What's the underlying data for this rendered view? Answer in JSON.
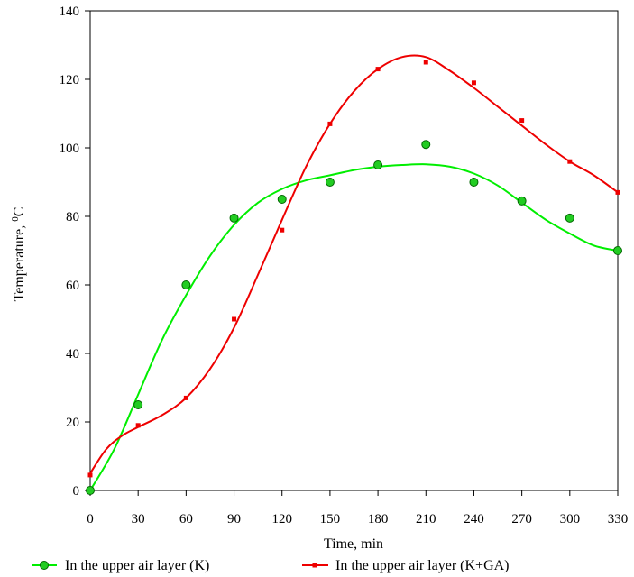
{
  "chart_data": {
    "type": "scatter",
    "xlabel": "Time, min",
    "ylabel": "Temperature, ",
    "ylabel_sup": "0",
    "ylabel_unit": "C",
    "xlim": [
      0,
      330
    ],
    "ylim": [
      0,
      140
    ],
    "x_ticks": [
      0,
      30,
      60,
      90,
      120,
      150,
      180,
      210,
      240,
      270,
      300,
      330
    ],
    "y_ticks": [
      0,
      20,
      40,
      60,
      80,
      100,
      120,
      140
    ],
    "grid": false,
    "legend_position": "bottom",
    "series": [
      {
        "name": "In the upper air layer (K)",
        "color": "#00ee00",
        "marker": "circle",
        "marker_color": "#22cc22",
        "points": [
          [
            0,
            0
          ],
          [
            30,
            25
          ],
          [
            60,
            60
          ],
          [
            90,
            79.5
          ],
          [
            120,
            85
          ],
          [
            150,
            90
          ],
          [
            180,
            95
          ],
          [
            210,
            101
          ],
          [
            240,
            90
          ],
          [
            270,
            84.5
          ],
          [
            300,
            79.5
          ],
          [
            330,
            70
          ]
        ],
        "trend": [
          [
            0,
            0
          ],
          [
            15,
            12
          ],
          [
            30,
            28
          ],
          [
            45,
            44
          ],
          [
            60,
            57
          ],
          [
            75,
            68.5
          ],
          [
            90,
            77.5
          ],
          [
            105,
            84
          ],
          [
            120,
            88
          ],
          [
            135,
            90.5
          ],
          [
            150,
            92
          ],
          [
            165,
            93.5
          ],
          [
            180,
            94.5
          ],
          [
            195,
            95
          ],
          [
            210,
            95.2
          ],
          [
            225,
            94.5
          ],
          [
            240,
            92.5
          ],
          [
            255,
            89
          ],
          [
            270,
            84
          ],
          [
            285,
            79
          ],
          [
            300,
            75
          ],
          [
            315,
            71.5
          ],
          [
            330,
            70
          ]
        ]
      },
      {
        "name": "In the upper air layer (K+GA)",
        "color": "#ee0000",
        "marker": "square",
        "marker_color": "#ee0000",
        "points": [
          [
            0,
            4.5
          ],
          [
            30,
            19
          ],
          [
            60,
            27
          ],
          [
            90,
            50
          ],
          [
            120,
            76
          ],
          [
            150,
            107
          ],
          [
            180,
            123
          ],
          [
            210,
            125
          ],
          [
            240,
            119
          ],
          [
            270,
            108
          ],
          [
            300,
            96
          ],
          [
            330,
            87
          ]
        ],
        "trend": [
          [
            0,
            5
          ],
          [
            10,
            12
          ],
          [
            20,
            16
          ],
          [
            30,
            18.5
          ],
          [
            45,
            22
          ],
          [
            60,
            27
          ],
          [
            75,
            35.5
          ],
          [
            90,
            47.5
          ],
          [
            105,
            63
          ],
          [
            120,
            79
          ],
          [
            135,
            94.5
          ],
          [
            150,
            107
          ],
          [
            165,
            116.5
          ],
          [
            180,
            123
          ],
          [
            195,
            126.5
          ],
          [
            210,
            126.5
          ],
          [
            225,
            122.5
          ],
          [
            240,
            117.5
          ],
          [
            255,
            112
          ],
          [
            270,
            106.5
          ],
          [
            285,
            101
          ],
          [
            300,
            96
          ],
          [
            315,
            92
          ],
          [
            330,
            87
          ]
        ]
      }
    ]
  }
}
